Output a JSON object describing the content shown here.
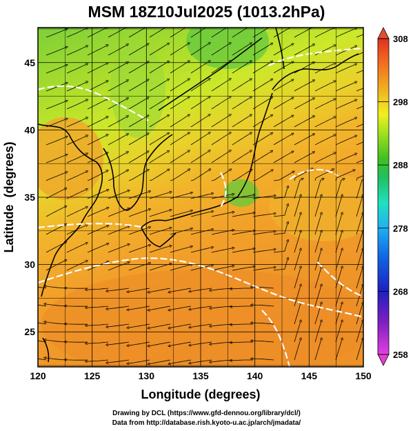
{
  "title": "MSM 18Z10Jul2025 (1013.2hPa)",
  "x_axis": {
    "label": "Longitude (degrees)",
    "ticks": [
      "120",
      "125",
      "130",
      "135",
      "140",
      "145",
      "150"
    ],
    "range": [
      120,
      150
    ]
  },
  "y_axis": {
    "label": "Latitude  (degrees)",
    "ticks": [
      "25",
      "30",
      "35",
      "40",
      "45"
    ],
    "range": [
      22.4,
      47.6
    ]
  },
  "colorbar": {
    "ticks": [
      "308",
      "298",
      "288",
      "278",
      "268",
      "258"
    ],
    "range": [
      258,
      308
    ],
    "colors": [
      "#e040e0",
      "#8020c0",
      "#2020c0",
      "#1060e0",
      "#20b0f0",
      "#20e0c0",
      "#20c060",
      "#40c020",
      "#a0e020",
      "#f0f020",
      "#f0c020",
      "#f09020",
      "#f06020",
      "#e03020"
    ]
  },
  "credits": [
    "Drawing by DCL (https://www.gfd-dennou.org/library/dcl/)",
    "Data from http://database.rish.kyoto-u.ac.jp/arch/jmadata/"
  ],
  "colors": {
    "land_outline": "#000000",
    "contour": "#ffffff",
    "streamline": "#000000",
    "warm_field": "#f0a020",
    "cool_field": "#60c030"
  }
}
